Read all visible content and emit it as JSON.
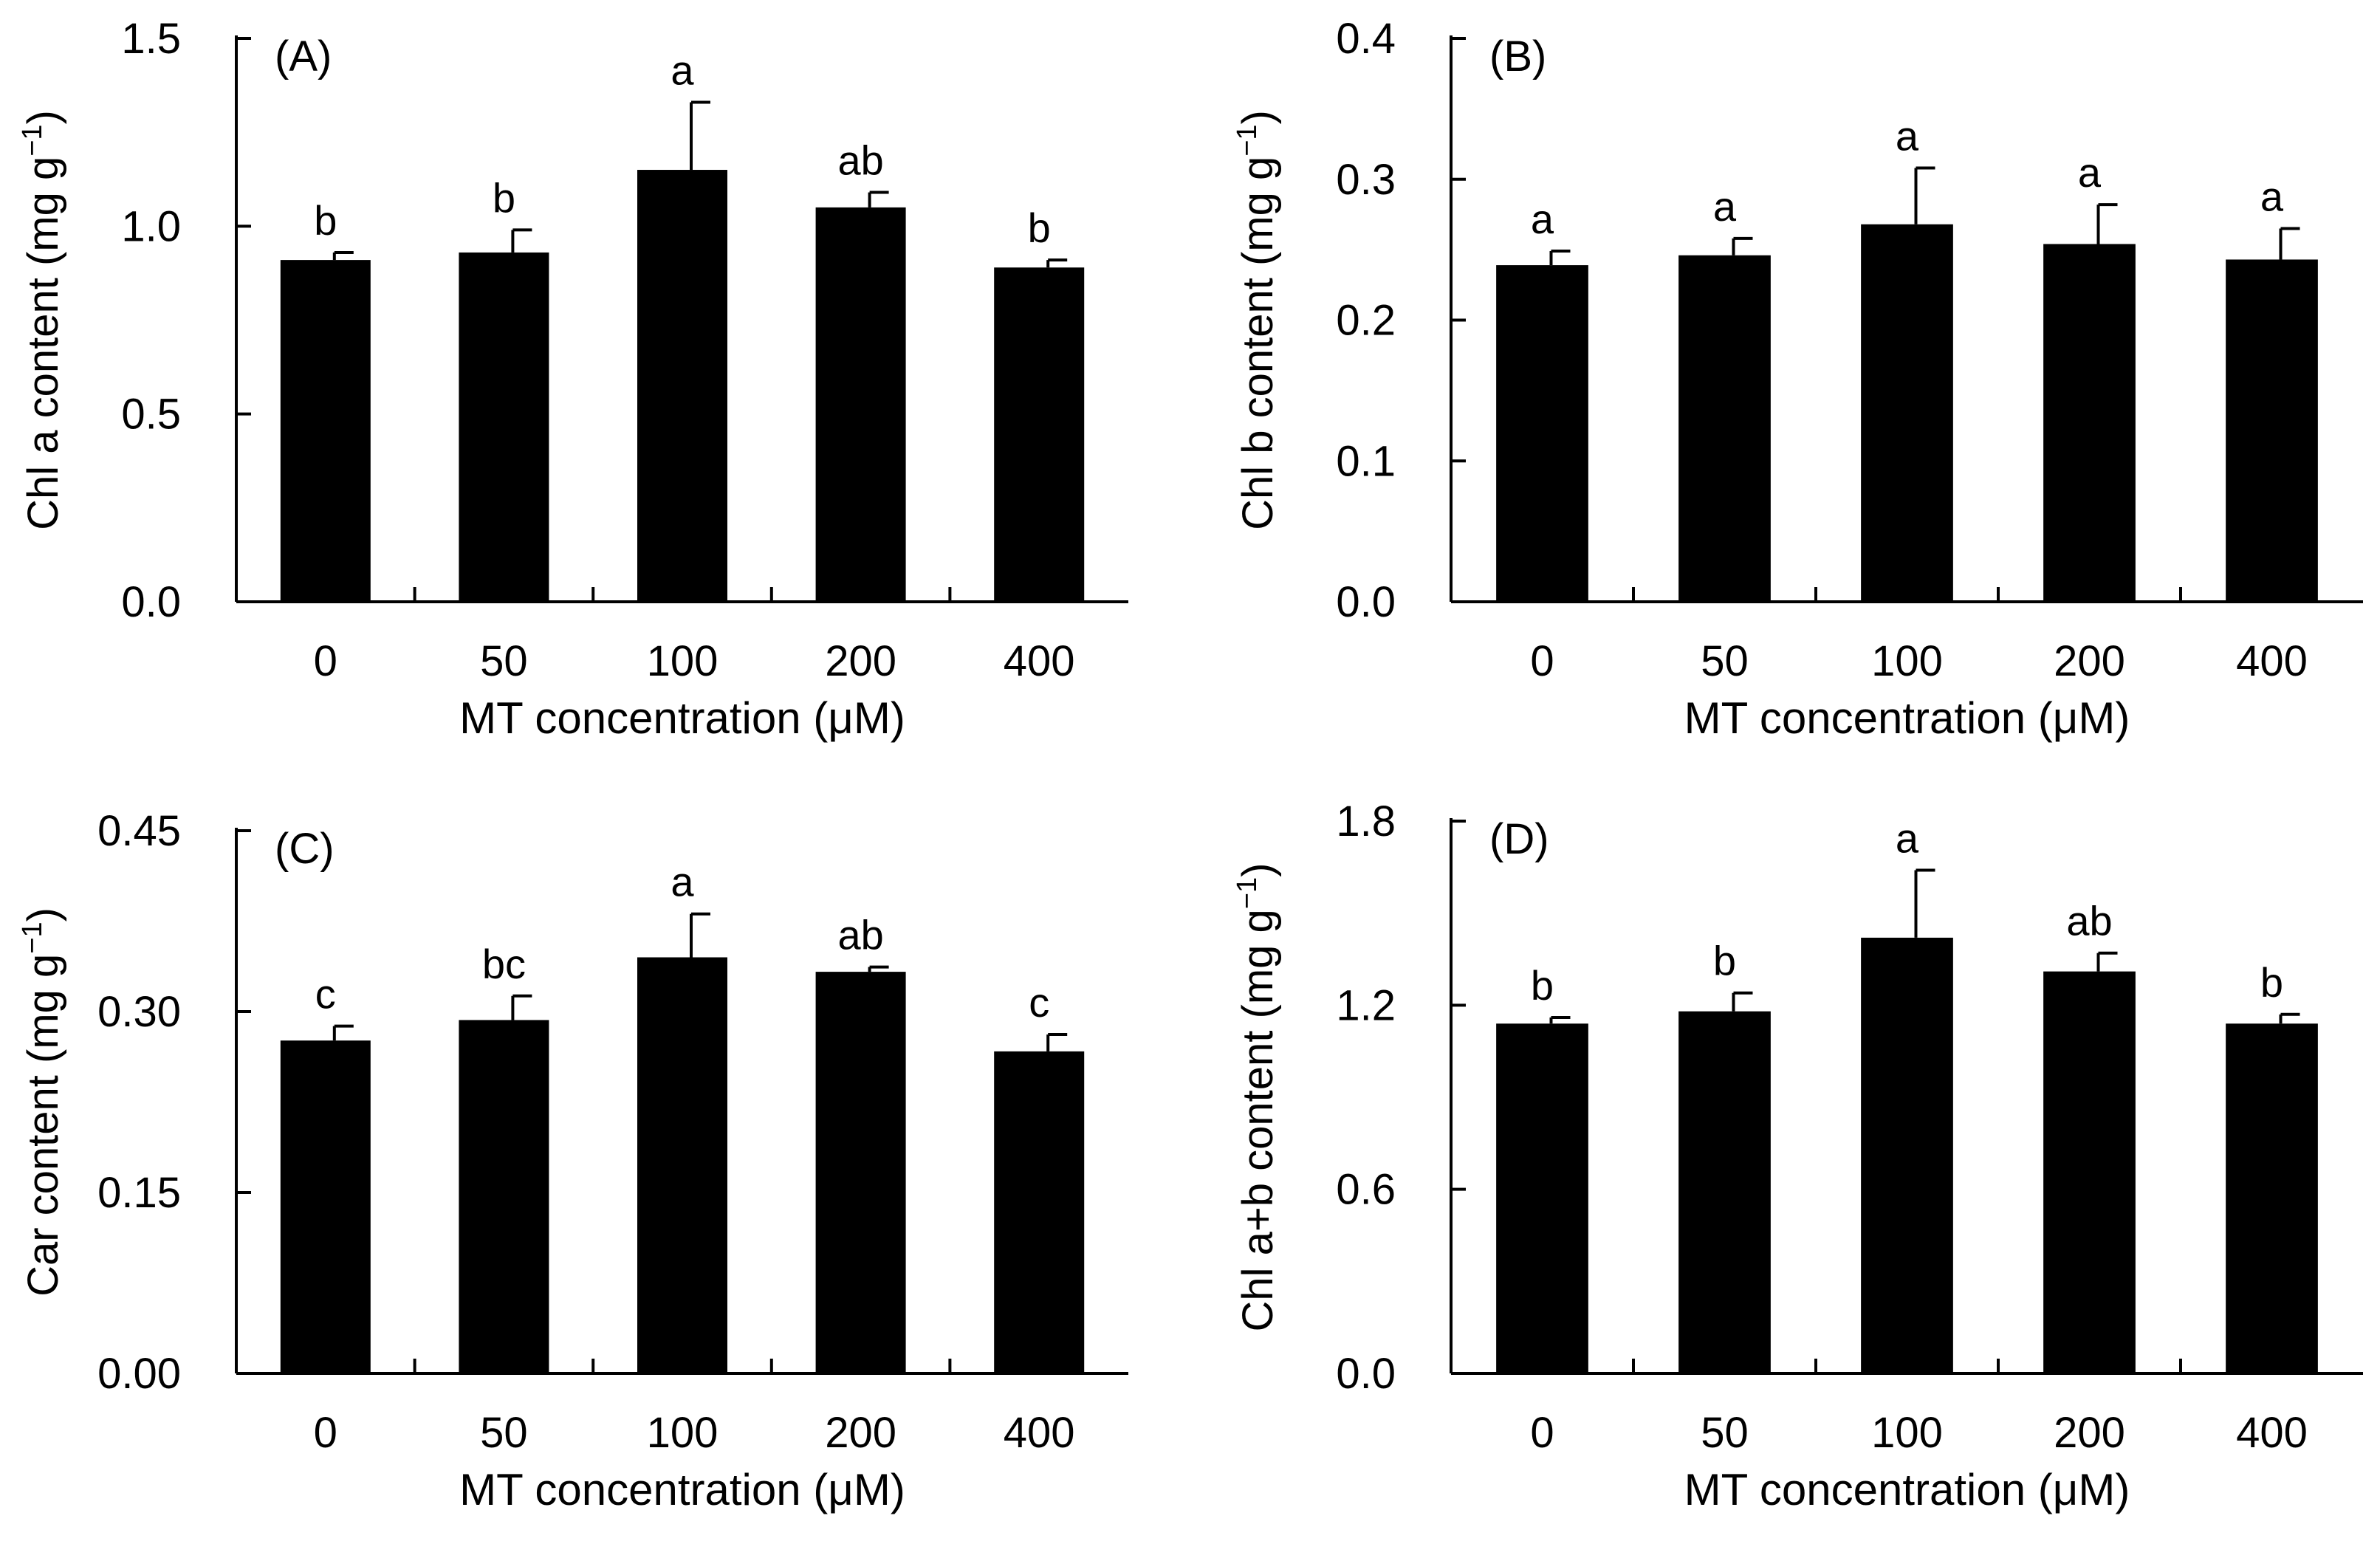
{
  "figure": {
    "bar_color": "#000000",
    "axis_color": "#000000",
    "background": "#ffffff"
  },
  "chart_data": [
    {
      "type": "bar",
      "panel": "(A)",
      "categories": [
        "0",
        "50",
        "100",
        "200",
        "400"
      ],
      "values": [
        0.91,
        0.93,
        1.15,
        1.05,
        0.89
      ],
      "errors": [
        0.02,
        0.06,
        0.18,
        0.04,
        0.02
      ],
      "significance": [
        "b",
        "b",
        "a",
        "ab",
        "b"
      ],
      "xlabel": "MT concentration (μM)",
      "ylabel_main": "Chl a content (mg g",
      "ylabel_sup": "−1",
      "ylabel_close": ")",
      "ylim": [
        0,
        1.5
      ],
      "yticks": [
        "0.0",
        "0.5",
        "1.0",
        "1.5"
      ]
    },
    {
      "type": "bar",
      "panel": "(B)",
      "categories": [
        "0",
        "50",
        "100",
        "200",
        "400"
      ],
      "values": [
        0.239,
        0.246,
        0.268,
        0.254,
        0.243
      ],
      "errors": [
        0.01,
        0.012,
        0.04,
        0.028,
        0.022
      ],
      "significance": [
        "a",
        "a",
        "a",
        "a",
        "a"
      ],
      "xlabel": "MT concentration (μM)",
      "ylabel_main": "Chl b content (mg g",
      "ylabel_sup": "−1",
      "ylabel_close": ")",
      "ylim": [
        0,
        0.4
      ],
      "yticks": [
        "0.0",
        "0.1",
        "0.2",
        "0.3",
        "0.4"
      ]
    },
    {
      "type": "bar",
      "panel": "(C)",
      "categories": [
        "0",
        "50",
        "100",
        "200",
        "400"
      ],
      "values": [
        0.276,
        0.293,
        0.345,
        0.333,
        0.267
      ],
      "errors": [
        0.012,
        0.02,
        0.036,
        0.004,
        0.014
      ],
      "significance": [
        "c",
        "bc",
        "a",
        "ab",
        "c"
      ],
      "xlabel": "MT concentration (μM)",
      "ylabel_main": "Car content (mg g",
      "ylabel_sup": "−1",
      "ylabel_close": ")",
      "ylim": [
        0,
        0.45
      ],
      "yticks": [
        "0.00",
        "0.15",
        "0.30",
        "0.45"
      ]
    },
    {
      "type": "bar",
      "panel": "(D)",
      "categories": [
        "0",
        "50",
        "100",
        "200",
        "400"
      ],
      "values": [
        1.14,
        1.18,
        1.42,
        1.31,
        1.14
      ],
      "errors": [
        0.02,
        0.06,
        0.22,
        0.06,
        0.03
      ],
      "significance": [
        "b",
        "b",
        "a",
        "ab",
        "b"
      ],
      "xlabel": "MT concentration (μM)",
      "ylabel_main": "Chl a+b content (mg g",
      "ylabel_sup": "−1",
      "ylabel_close": ")",
      "ylim": [
        0,
        1.8
      ],
      "yticks": [
        "0.0",
        "0.6",
        "1.2",
        "1.8"
      ]
    }
  ]
}
